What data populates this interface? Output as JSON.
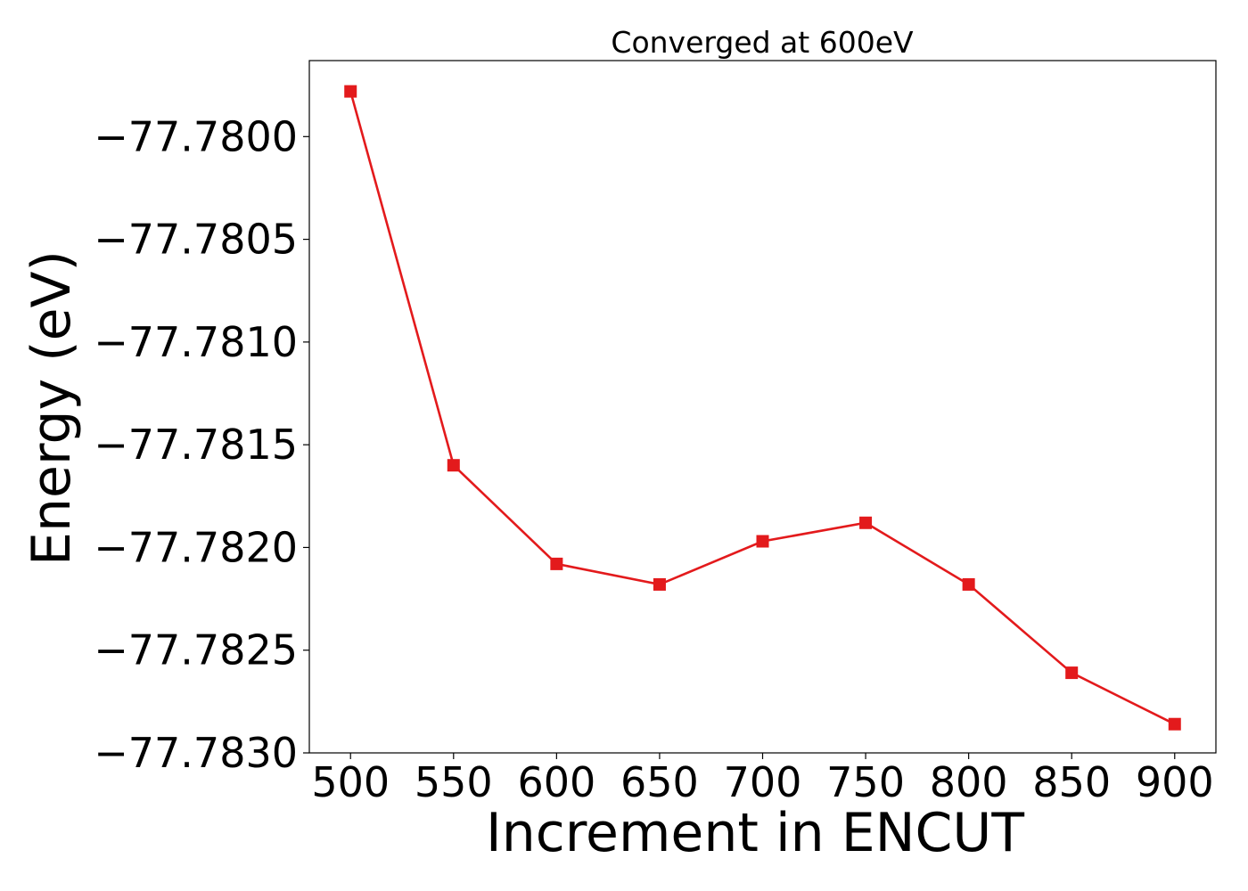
{
  "chart_data": {
    "type": "line",
    "title": "Converged at 600eV",
    "xlabel": "Increment in ENCUT",
    "ylabel": "Energy (eV)",
    "x": [
      500,
      550,
      600,
      650,
      700,
      750,
      800,
      850,
      900
    ],
    "series": [
      {
        "values": [
          -77.77978,
          -77.7816,
          -77.78208,
          -77.78218,
          -77.78197,
          -77.78188,
          -77.78218,
          -77.78261,
          -77.78286
        ],
        "color": "#e31a1c",
        "marker": "square"
      }
    ],
    "xticks": [
      500,
      550,
      600,
      650,
      700,
      750,
      800,
      850,
      900
    ],
    "xtick_labels": [
      "500",
      "550",
      "600",
      "650",
      "700",
      "750",
      "800",
      "850",
      "900"
    ],
    "yticks": [
      -77.78,
      -77.7805,
      -77.781,
      -77.7815,
      -77.782,
      -77.7825,
      -77.783
    ],
    "ytick_labels": [
      "−77.7800",
      "−77.7805",
      "−77.7810",
      "−77.7815",
      "−77.7820",
      "−77.7825",
      "−77.7830"
    ],
    "xlim": [
      480,
      920
    ],
    "ylim": [
      -77.783,
      -77.77963
    ],
    "grid": false,
    "legend": "none"
  }
}
